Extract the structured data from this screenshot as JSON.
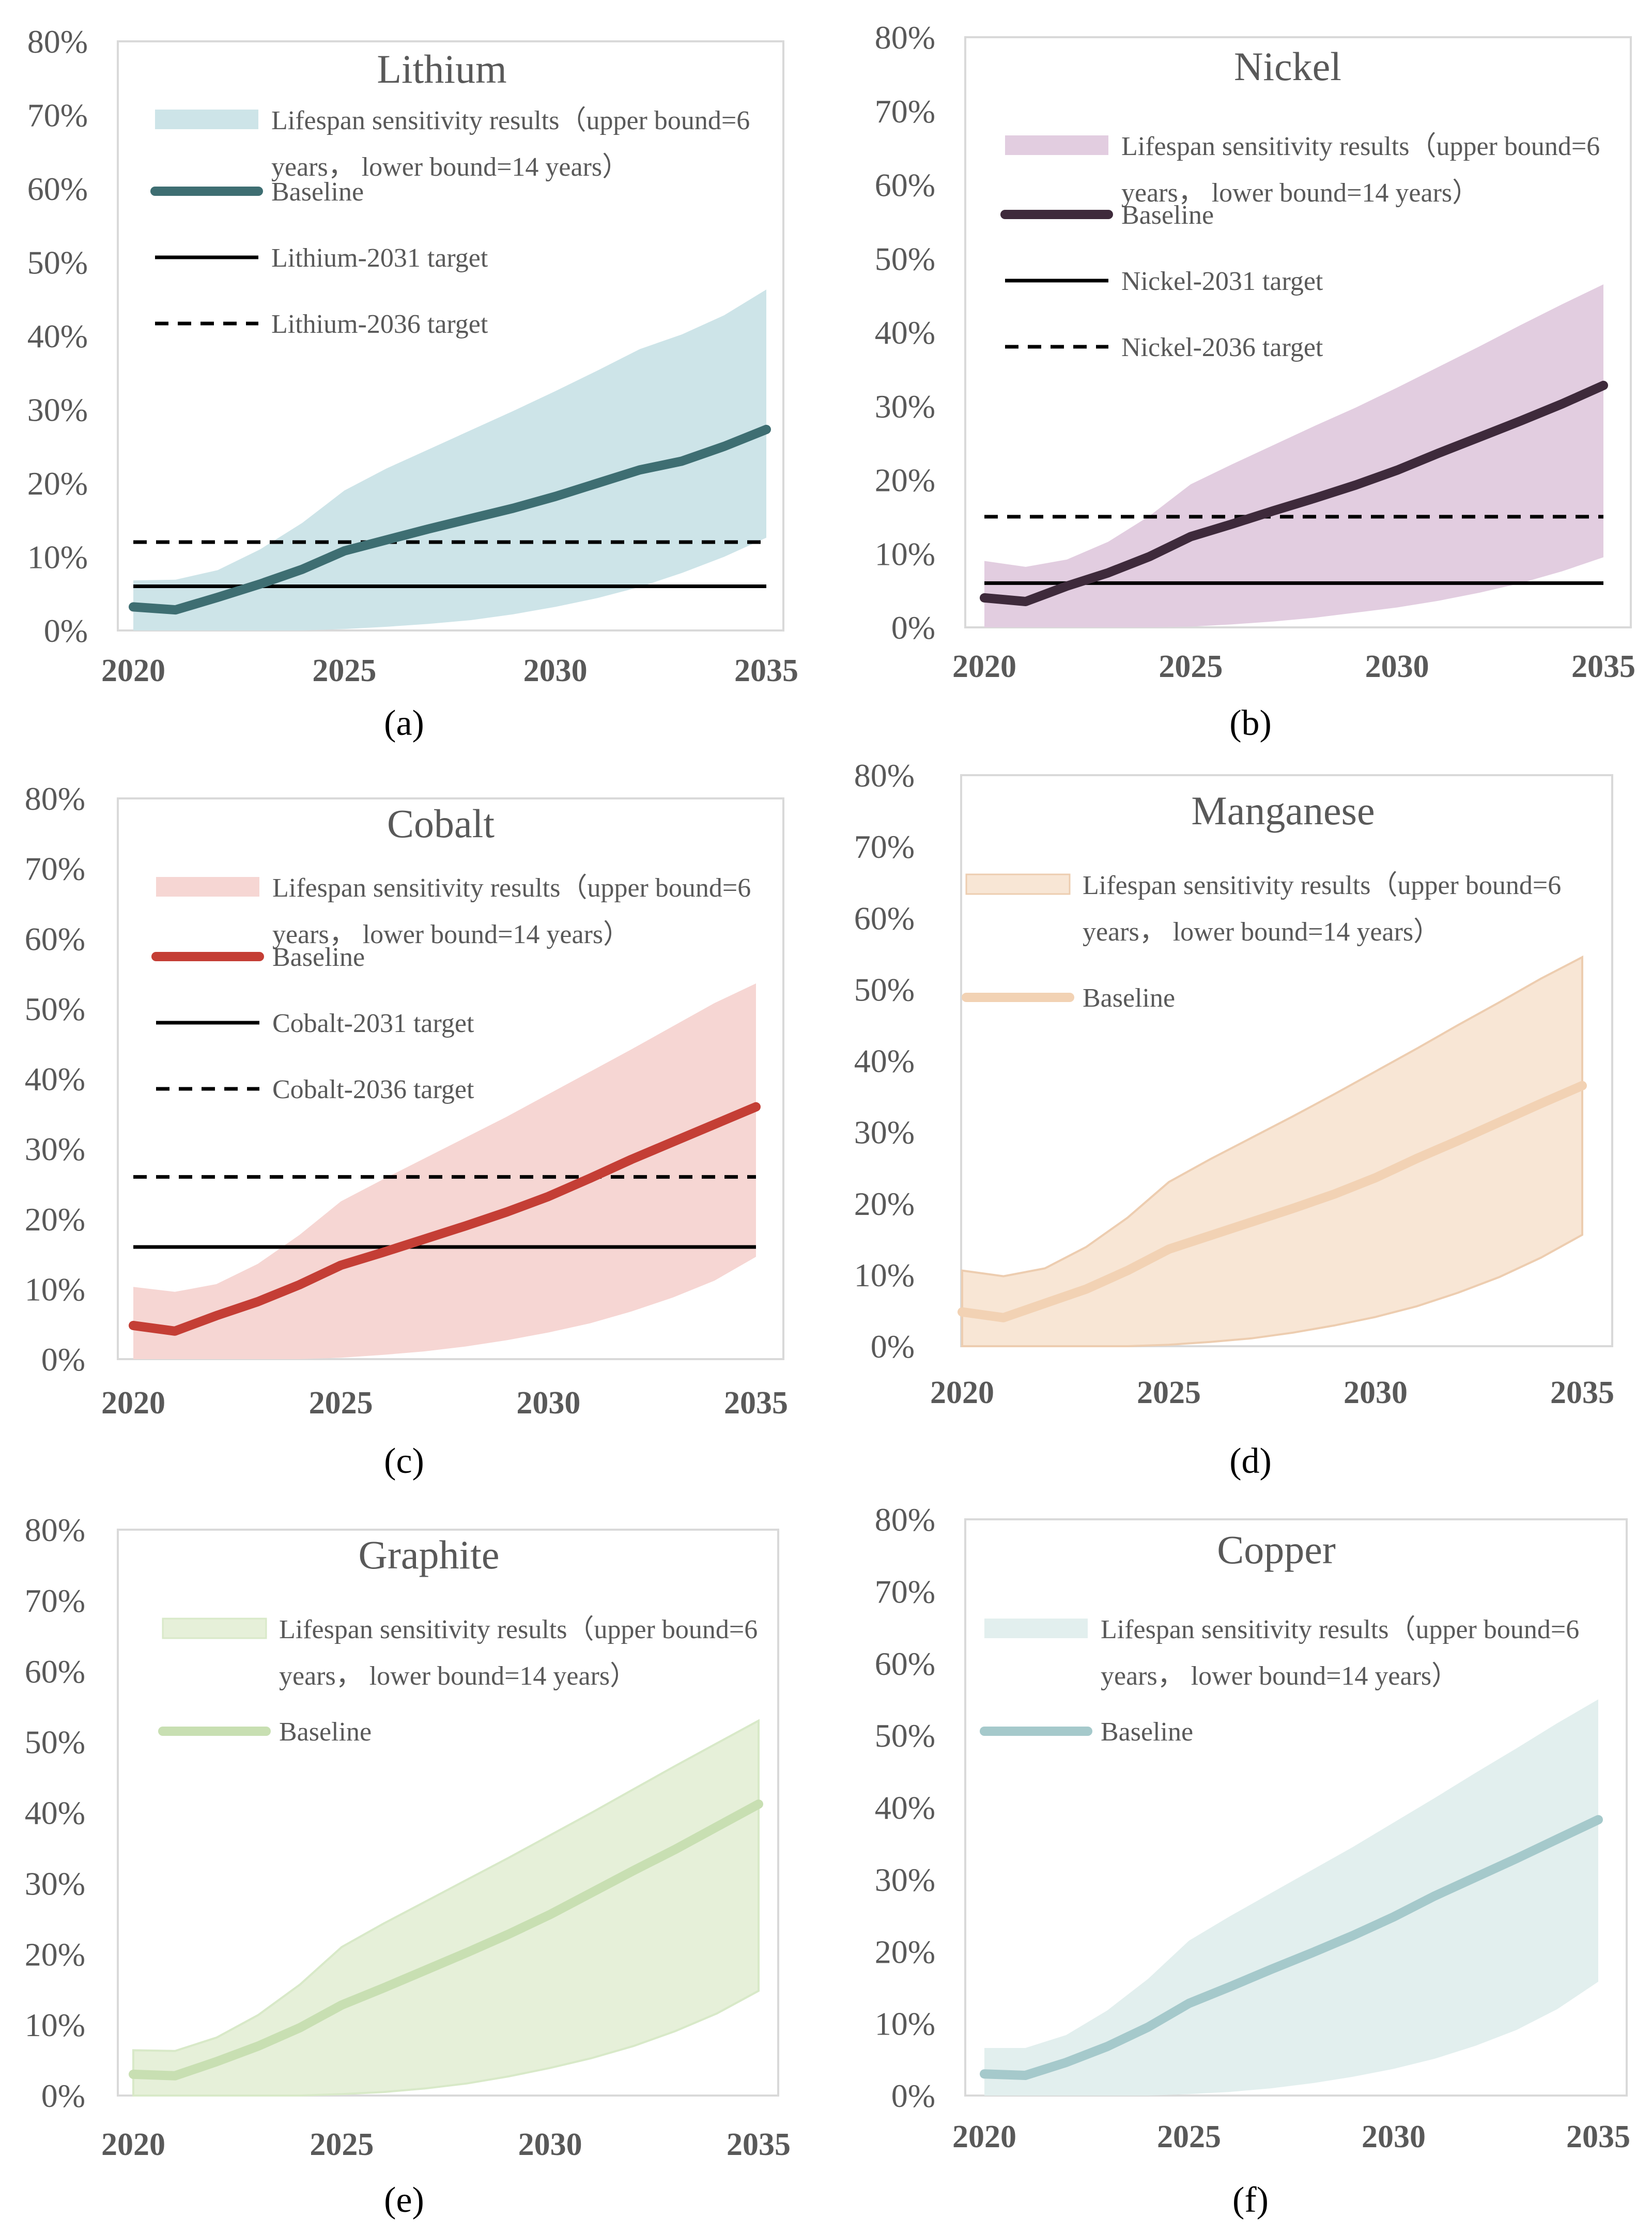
{
  "figure": {
    "panel_captions": [
      "(a)",
      "(b)",
      "(c)",
      "(d)",
      "(e)",
      "(f)"
    ]
  },
  "chart_data": [
    {
      "type": "line",
      "panel": "a",
      "title": "Lithium",
      "caption": "(a)",
      "xlim": [
        2020,
        2035
      ],
      "ylim": [
        0,
        80
      ],
      "x_ticks": [
        2020,
        2025,
        2030,
        2035
      ],
      "y_ticks": [
        "0%",
        "10%",
        "20%",
        "30%",
        "40%",
        "50%",
        "60%",
        "70%",
        "80%"
      ],
      "colors": {
        "band": "#cde4e8",
        "baseline": "#3e6e72"
      },
      "legend": {
        "band_line1": "Lifespan sensitivity results（upper bound=6",
        "band_line2": "years， lower bound=14 years）",
        "baseline": "Baseline",
        "target2031": "Lithium-2031 target",
        "target2036": "Lithium-2036 target"
      },
      "series": [
        {
          "name": "Baseline",
          "x": [
            2020,
            2021,
            2022,
            2023,
            2024,
            2025,
            2026,
            2027,
            2028,
            2029,
            2030,
            2031,
            2032,
            2033,
            2034,
            2035
          ],
          "values": [
            3.2,
            2.8,
            4.5,
            6.3,
            8.3,
            10.8,
            12.3,
            13.8,
            15.2,
            16.6,
            18.2,
            20.0,
            21.8,
            23.0,
            25.0,
            27.3
          ]
        },
        {
          "name": "Upper bound",
          "x": [
            2020,
            2021,
            2022,
            2023,
            2024,
            2025,
            2026,
            2027,
            2028,
            2029,
            2030,
            2031,
            2032,
            2033,
            2034,
            2035
          ],
          "values": [
            6.8,
            6.9,
            8.2,
            11.0,
            14.6,
            19.0,
            22.0,
            24.6,
            27.2,
            29.8,
            32.5,
            35.3,
            38.2,
            40.2,
            42.8,
            46.3
          ]
        },
        {
          "name": "Lower bound",
          "x": [
            2020,
            2021,
            2022,
            2023,
            2024,
            2025,
            2026,
            2027,
            2028,
            2029,
            2030,
            2031,
            2032,
            2033,
            2034,
            2035
          ],
          "values": [
            0,
            0,
            0,
            0,
            0,
            0.2,
            0.5,
            0.9,
            1.4,
            2.2,
            3.2,
            4.4,
            5.9,
            7.8,
            10.0,
            12.6
          ]
        }
      ],
      "targets": [
        {
          "name": "Lithium-2031 target",
          "value": 6,
          "style": "solid"
        },
        {
          "name": "Lithium-2036 target",
          "value": 12,
          "style": "dashed"
        }
      ]
    },
    {
      "type": "line",
      "panel": "b",
      "title": "Nickel",
      "caption": "(b)",
      "xlim": [
        2020,
        2035
      ],
      "ylim": [
        0,
        80
      ],
      "x_ticks": [
        2020,
        2025,
        2030,
        2035
      ],
      "y_ticks": [
        "0%",
        "10%",
        "20%",
        "30%",
        "40%",
        "50%",
        "60%",
        "70%",
        "80%"
      ],
      "colors": {
        "band": "#e2cde0",
        "baseline": "#3e2a3b"
      },
      "legend": {
        "band_line1": "Lifespan sensitivity results（upper bound=6",
        "band_line2": "years， lower bound=14 years）",
        "baseline": "Baseline",
        "target2031": "Nickel-2031 target",
        "target2036": "Nickel-2036 target"
      },
      "series": [
        {
          "name": "Baseline",
          "x": [
            2020,
            2021,
            2022,
            2023,
            2024,
            2025,
            2026,
            2027,
            2028,
            2029,
            2030,
            2031,
            2032,
            2033,
            2034,
            2035
          ],
          "values": [
            4.0,
            3.5,
            5.6,
            7.4,
            9.6,
            12.3,
            14.0,
            15.8,
            17.5,
            19.3,
            21.3,
            23.6,
            25.8,
            28.0,
            30.3,
            32.8
          ]
        },
        {
          "name": "Upper bound",
          "x": [
            2020,
            2021,
            2022,
            2023,
            2024,
            2025,
            2026,
            2027,
            2028,
            2029,
            2030,
            2031,
            2032,
            2033,
            2034,
            2035
          ],
          "values": [
            9.0,
            8.2,
            9.2,
            11.6,
            15.1,
            19.4,
            22.1,
            24.7,
            27.3,
            29.8,
            32.5,
            35.3,
            38.1,
            41.0,
            43.8,
            46.5
          ]
        },
        {
          "name": "Lower bound",
          "x": [
            2020,
            2021,
            2022,
            2023,
            2024,
            2025,
            2026,
            2027,
            2028,
            2029,
            2030,
            2031,
            2032,
            2033,
            2034,
            2035
          ],
          "values": [
            0,
            0,
            0,
            0,
            0,
            0.1,
            0.4,
            0.8,
            1.3,
            2.0,
            2.7,
            3.6,
            4.7,
            6.0,
            7.6,
            9.5
          ]
        }
      ],
      "targets": [
        {
          "name": "Nickel-2031 target",
          "value": 6,
          "style": "solid"
        },
        {
          "name": "Nickel-2036 target",
          "value": 15,
          "style": "dashed"
        }
      ]
    },
    {
      "type": "line",
      "panel": "c",
      "title": "Cobalt",
      "caption": "(c)",
      "xlim": [
        2020,
        2035
      ],
      "ylim": [
        0,
        80
      ],
      "x_ticks": [
        2020,
        2025,
        2030,
        2035
      ],
      "y_ticks": [
        "0%",
        "10%",
        "20%",
        "30%",
        "40%",
        "50%",
        "60%",
        "70%",
        "80%"
      ],
      "colors": {
        "band": "#f6d6d3",
        "baseline": "#c43e35"
      },
      "legend": {
        "band_line1": "Lifespan sensitivity results（upper bound=6",
        "band_line2": "years， lower bound=14 years）",
        "baseline": "Baseline",
        "target2031": "Cobalt-2031 target",
        "target2036": "Cobalt-2036 target"
      },
      "series": [
        {
          "name": "Baseline",
          "x": [
            2020,
            2021,
            2022,
            2023,
            2024,
            2025,
            2026,
            2027,
            2028,
            2029,
            2030,
            2031,
            2032,
            2033,
            2034,
            2035
          ],
          "values": [
            4.8,
            4.0,
            6.2,
            8.2,
            10.6,
            13.4,
            15.2,
            17.1,
            19.0,
            21.0,
            23.2,
            25.8,
            28.5,
            31.0,
            33.5,
            36.0
          ]
        },
        {
          "name": "Upper bound",
          "x": [
            2020,
            2021,
            2022,
            2023,
            2024,
            2025,
            2026,
            2027,
            2028,
            2029,
            2030,
            2031,
            2032,
            2033,
            2034,
            2035
          ],
          "values": [
            10.3,
            9.6,
            10.7,
            13.6,
            17.7,
            22.5,
            25.6,
            28.6,
            31.6,
            34.6,
            37.8,
            41.0,
            44.2,
            47.5,
            50.8,
            53.6
          ]
        },
        {
          "name": "Lower bound",
          "x": [
            2020,
            2021,
            2022,
            2023,
            2024,
            2025,
            2026,
            2027,
            2028,
            2029,
            2030,
            2031,
            2032,
            2033,
            2034,
            2035
          ],
          "values": [
            0,
            0,
            0,
            0,
            0,
            0.2,
            0.6,
            1.1,
            1.8,
            2.7,
            3.8,
            5.1,
            6.8,
            8.8,
            11.2,
            14.6
          ]
        }
      ],
      "targets": [
        {
          "name": "Cobalt-2031 target",
          "value": 16,
          "style": "solid"
        },
        {
          "name": "Cobalt-2036 target",
          "value": 26,
          "style": "dashed"
        }
      ]
    },
    {
      "type": "line",
      "panel": "d",
      "title": "Manganese",
      "caption": "(d)",
      "xlim": [
        2020,
        2035
      ],
      "ylim": [
        0,
        80
      ],
      "x_ticks": [
        2020,
        2025,
        2030,
        2035
      ],
      "y_ticks": [
        "0%",
        "10%",
        "20%",
        "30%",
        "40%",
        "50%",
        "60%",
        "70%",
        "80%"
      ],
      "colors": {
        "band": "#f8e6d5",
        "band_edge": "#edcdb0",
        "baseline": "#f2d2b4"
      },
      "legend": {
        "band_line1": "Lifespan sensitivity results（upper bound=6",
        "band_line2": "years， lower bound=14 years）",
        "baseline": "Baseline"
      },
      "series": [
        {
          "name": "Baseline",
          "x": [
            2020,
            2021,
            2022,
            2023,
            2024,
            2025,
            2026,
            2027,
            2028,
            2029,
            2030,
            2031,
            2032,
            2033,
            2034,
            2035
          ],
          "values": [
            4.8,
            4.0,
            6.0,
            8.0,
            10.6,
            13.6,
            15.5,
            17.4,
            19.3,
            21.3,
            23.6,
            26.3,
            28.8,
            31.4,
            34.0,
            36.5
          ]
        },
        {
          "name": "Upper bound",
          "x": [
            2020,
            2021,
            2022,
            2023,
            2024,
            2025,
            2026,
            2027,
            2028,
            2029,
            2030,
            2031,
            2032,
            2033,
            2034,
            2035
          ],
          "values": [
            10.6,
            9.8,
            10.9,
            13.9,
            18.0,
            23.0,
            26.2,
            29.2,
            32.2,
            35.3,
            38.5,
            41.7,
            45.0,
            48.2,
            51.5,
            54.5
          ]
        },
        {
          "name": "Lower bound",
          "x": [
            2020,
            2021,
            2022,
            2023,
            2024,
            2025,
            2026,
            2027,
            2028,
            2029,
            2030,
            2031,
            2032,
            2033,
            2034,
            2035
          ],
          "values": [
            0,
            0,
            0,
            0,
            0,
            0.2,
            0.6,
            1.1,
            1.9,
            2.9,
            4.1,
            5.6,
            7.5,
            9.7,
            12.4,
            15.6
          ]
        }
      ],
      "targets": []
    },
    {
      "type": "line",
      "panel": "e",
      "title": "Graphite",
      "caption": "(e)",
      "xlim": [
        2020,
        2035
      ],
      "ylim": [
        0,
        80
      ],
      "x_ticks": [
        2020,
        2025,
        2030,
        2035
      ],
      "y_ticks": [
        "0%",
        "10%",
        "20%",
        "30%",
        "40%",
        "50%",
        "60%",
        "70%",
        "80%"
      ],
      "colors": {
        "band": "#e6f0d9",
        "band_edge": "#d8e9c8",
        "baseline": "#c8dfb2"
      },
      "legend": {
        "band_line1": "Lifespan sensitivity results（upper bound=6",
        "band_line2": "years， lower bound=14 years）",
        "baseline": "Baseline"
      },
      "series": [
        {
          "name": "Baseline",
          "x": [
            2020,
            2021,
            2022,
            2023,
            2024,
            2025,
            2026,
            2027,
            2028,
            2029,
            2030,
            2031,
            2032,
            2033,
            2034,
            2035
          ],
          "values": [
            3.0,
            2.8,
            4.8,
            7.0,
            9.6,
            12.8,
            15.2,
            17.7,
            20.2,
            22.8,
            25.6,
            28.7,
            31.8,
            34.8,
            38.0,
            41.2
          ]
        },
        {
          "name": "Upper bound",
          "x": [
            2020,
            2021,
            2022,
            2023,
            2024,
            2025,
            2026,
            2027,
            2028,
            2029,
            2030,
            2031,
            2032,
            2033,
            2034,
            2035
          ],
          "values": [
            6.4,
            6.3,
            8.2,
            11.4,
            15.7,
            21.0,
            24.3,
            27.4,
            30.5,
            33.6,
            36.8,
            40.0,
            43.3,
            46.6,
            49.8,
            53.0
          ]
        },
        {
          "name": "Lower bound",
          "x": [
            2020,
            2021,
            2022,
            2023,
            2024,
            2025,
            2026,
            2027,
            2028,
            2029,
            2030,
            2031,
            2032,
            2033,
            2034,
            2035
          ],
          "values": [
            0,
            0,
            0,
            0,
            0,
            0.2,
            0.5,
            1.0,
            1.7,
            2.7,
            3.9,
            5.3,
            7.0,
            9.1,
            11.6,
            14.8
          ]
        }
      ],
      "targets": []
    },
    {
      "type": "line",
      "panel": "f",
      "title": "Copper",
      "caption": "(f)",
      "xlim": [
        2020,
        2035
      ],
      "ylim": [
        0,
        80
      ],
      "x_ticks": [
        2020,
        2025,
        2030,
        2035
      ],
      "y_ticks": [
        "0%",
        "10%",
        "20%",
        "30%",
        "40%",
        "50%",
        "60%",
        "70%",
        "80%"
      ],
      "colors": {
        "band": "#e2efee",
        "baseline": "#a5c9cb"
      },
      "legend": {
        "band_line1": "Lifespan sensitivity results（upper bound=6",
        "band_line2": "years， lower bound=14 years）",
        "baseline": "Baseline"
      },
      "series": [
        {
          "name": "Baseline",
          "x": [
            2020,
            2021,
            2022,
            2023,
            2024,
            2025,
            2026,
            2027,
            2028,
            2029,
            2030,
            2031,
            2032,
            2033,
            2034,
            2035
          ],
          "values": [
            3.0,
            2.8,
            4.6,
            6.8,
            9.5,
            12.8,
            15.1,
            17.5,
            19.8,
            22.2,
            24.8,
            27.7,
            30.3,
            32.9,
            35.6,
            38.3
          ]
        },
        {
          "name": "Upper bound",
          "x": [
            2020,
            2021,
            2022,
            2023,
            2024,
            2025,
            2026,
            2027,
            2028,
            2029,
            2030,
            2031,
            2032,
            2033,
            2034,
            2035
          ],
          "values": [
            6.6,
            6.6,
            8.4,
            11.8,
            16.2,
            21.5,
            24.9,
            28.1,
            31.3,
            34.5,
            37.9,
            41.3,
            44.8,
            48.2,
            51.7,
            55.0
          ]
        },
        {
          "name": "Lower bound",
          "x": [
            2020,
            2021,
            2022,
            2023,
            2024,
            2025,
            2026,
            2027,
            2028,
            2029,
            2030,
            2031,
            2032,
            2033,
            2034,
            2035
          ],
          "values": [
            0,
            0,
            0,
            0,
            0,
            0.2,
            0.5,
            1.0,
            1.7,
            2.6,
            3.7,
            5.1,
            6.9,
            9.1,
            12.0,
            15.8
          ]
        }
      ],
      "targets": []
    }
  ]
}
